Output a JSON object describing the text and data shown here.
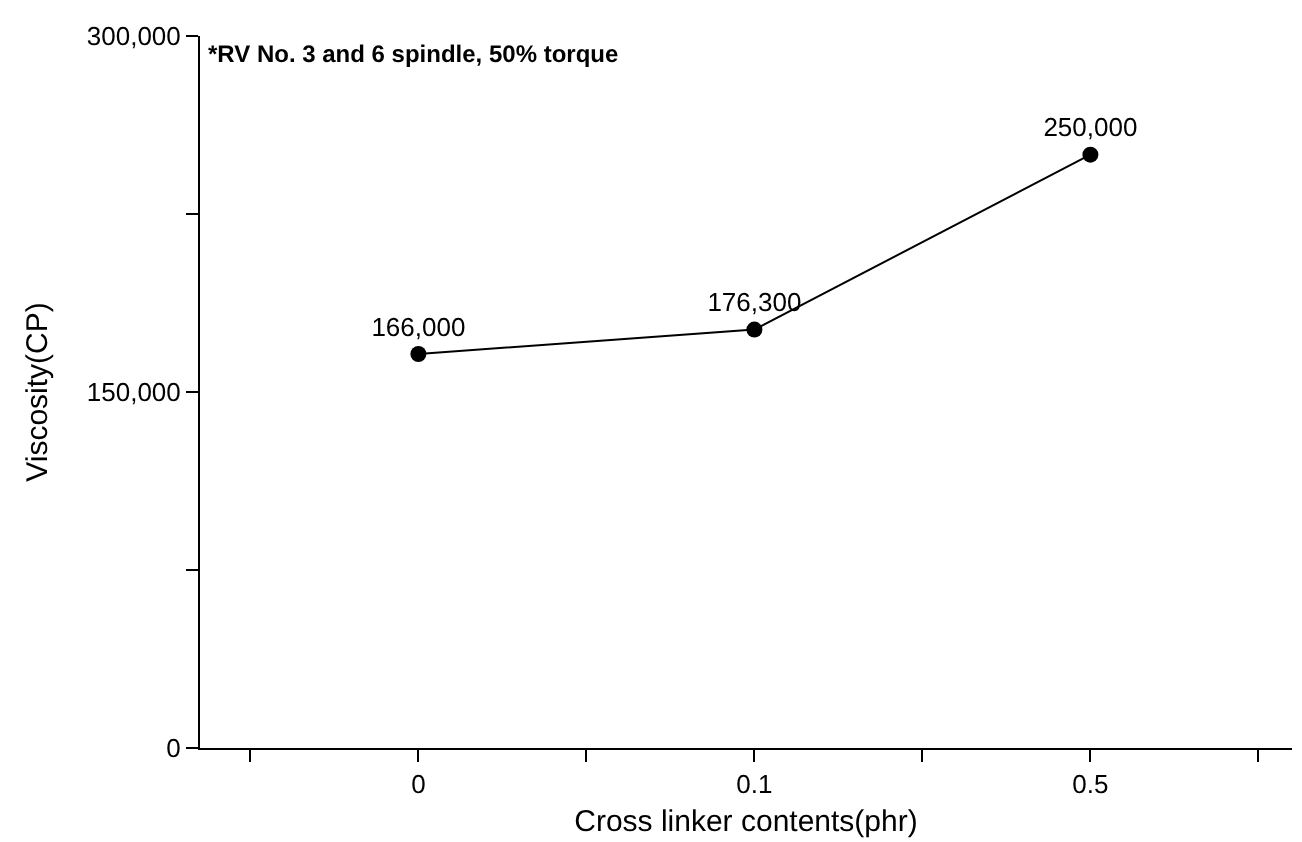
{
  "chart_data": {
    "type": "line",
    "categories": [
      "0",
      "0.1",
      "0.5"
    ],
    "values": [
      166000,
      176300,
      250000
    ],
    "color": "#000000",
    "marker": "circle",
    "line_style": "solid",
    "data_labels": true,
    "value_labels": [
      "166,000",
      "176,300",
      "250,000"
    ],
    "xlabel": "Cross linker contents(phr)",
    "ylabel": "Viscosity(CP)",
    "ylim": [
      0,
      300000
    ],
    "yticks": [
      {
        "value": 0,
        "label": "0"
      },
      {
        "value": 75000,
        "label": null
      },
      {
        "value": 150000,
        "label": "150,000"
      },
      {
        "value": 225000,
        "label": null
      },
      {
        "value": 300000,
        "label": "300,000"
      }
    ],
    "annotations": [
      "*RV No. 3 and 6 spindle, 50% torque"
    ],
    "legend": false
  }
}
